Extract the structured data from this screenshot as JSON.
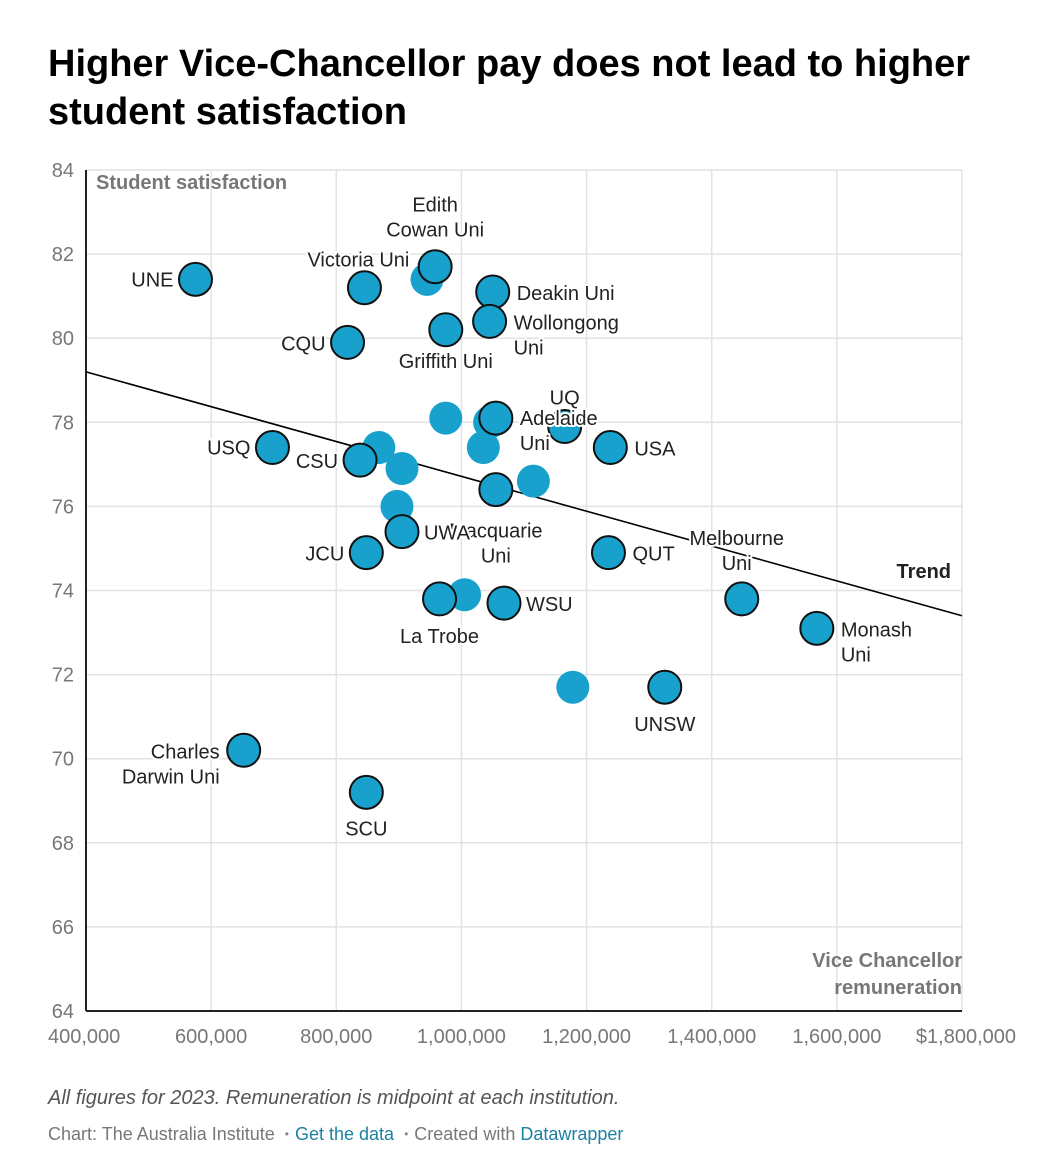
{
  "title": "Higher Vice-Chancellor pay does not lead to higher student satisfaction",
  "notes": "All figures for 2023. Remuneration is midpoint at each institution.",
  "footer": {
    "credit": "Chart: The Australia Institute",
    "get_data": "Get the data",
    "created_with": "Created with",
    "tool": "Datawrapper"
  },
  "colors": {
    "dot": "#18a1cd",
    "outline": "#111111",
    "grid": "#e2e2e2",
    "axis": "#222222",
    "axis_title": "#777777",
    "trend": "#000000"
  },
  "chart_data": {
    "type": "scatter",
    "xlabel": "Vice Chancellor remuneration",
    "ylabel": "Student satisfaction",
    "xlim": [
      400000,
      1800000
    ],
    "ylim": [
      64,
      84
    ],
    "x_ticks": [
      400000,
      600000,
      800000,
      1000000,
      1200000,
      1400000,
      1600000,
      1800000
    ],
    "x_tick_labels": [
      "400,000",
      "600,000",
      "800,000",
      "1,000,000",
      "1,200,000",
      "1,400,000",
      "1,600,000",
      "$1,800,000"
    ],
    "y_ticks": [
      64,
      66,
      68,
      70,
      72,
      74,
      76,
      78,
      80,
      82,
      84
    ],
    "grid": true,
    "trend": {
      "label": "Trend",
      "x": [
        400000,
        1800000
      ],
      "y": [
        79.2,
        73.4
      ]
    },
    "points": [
      {
        "name": "UNE",
        "x": 575000,
        "y": 81.4
      },
      {
        "name": "Victoria Uni",
        "x": 845000,
        "y": 81.2
      },
      {
        "name": "Edith Cowan Uni",
        "x": 958000,
        "y": 81.7
      },
      {
        "name": "",
        "x": 945000,
        "y": 81.4
      },
      {
        "name": "Deakin Uni",
        "x": 1050000,
        "y": 81.1
      },
      {
        "name": "Wollongong Uni",
        "x": 1045000,
        "y": 80.4
      },
      {
        "name": "Griffith Uni",
        "x": 975000,
        "y": 80.2
      },
      {
        "name": "CQU",
        "x": 818000,
        "y": 79.9
      },
      {
        "name": "",
        "x": 975000,
        "y": 78.1
      },
      {
        "name": "",
        "x": 1045000,
        "y": 78.0
      },
      {
        "name": "Adelaide Uni",
        "x": 1055000,
        "y": 78.1
      },
      {
        "name": "UQ",
        "x": 1165000,
        "y": 77.9
      },
      {
        "name": "USA",
        "x": 1238000,
        "y": 77.4
      },
      {
        "name": "USQ",
        "x": 698000,
        "y": 77.4
      },
      {
        "name": "",
        "x": 868000,
        "y": 77.4
      },
      {
        "name": "CSU",
        "x": 838000,
        "y": 77.1
      },
      {
        "name": "",
        "x": 905000,
        "y": 76.9
      },
      {
        "name": "",
        "x": 1035000,
        "y": 77.4
      },
      {
        "name": "",
        "x": 1115000,
        "y": 76.6
      },
      {
        "name": "Macquarie Uni",
        "x": 1055000,
        "y": 76.4
      },
      {
        "name": "",
        "x": 897000,
        "y": 76.0
      },
      {
        "name": "UWA",
        "x": 905000,
        "y": 75.4
      },
      {
        "name": "JCU",
        "x": 848000,
        "y": 74.9
      },
      {
        "name": "QUT",
        "x": 1235000,
        "y": 74.9
      },
      {
        "name": "Melbourne Uni",
        "x": 1448000,
        "y": 73.8
      },
      {
        "name": "",
        "x": 1005000,
        "y": 73.9
      },
      {
        "name": "La Trobe",
        "x": 965000,
        "y": 73.8
      },
      {
        "name": "WSU",
        "x": 1068000,
        "y": 73.7
      },
      {
        "name": "Monash Uni",
        "x": 1568000,
        "y": 73.1
      },
      {
        "name": "",
        "x": 1178000,
        "y": 71.7
      },
      {
        "name": "UNSW",
        "x": 1325000,
        "y": 71.7
      },
      {
        "name": "Charles Darwin Uni",
        "x": 652000,
        "y": 70.2
      },
      {
        "name": "SCU",
        "x": 848000,
        "y": 69.2
      }
    ]
  }
}
